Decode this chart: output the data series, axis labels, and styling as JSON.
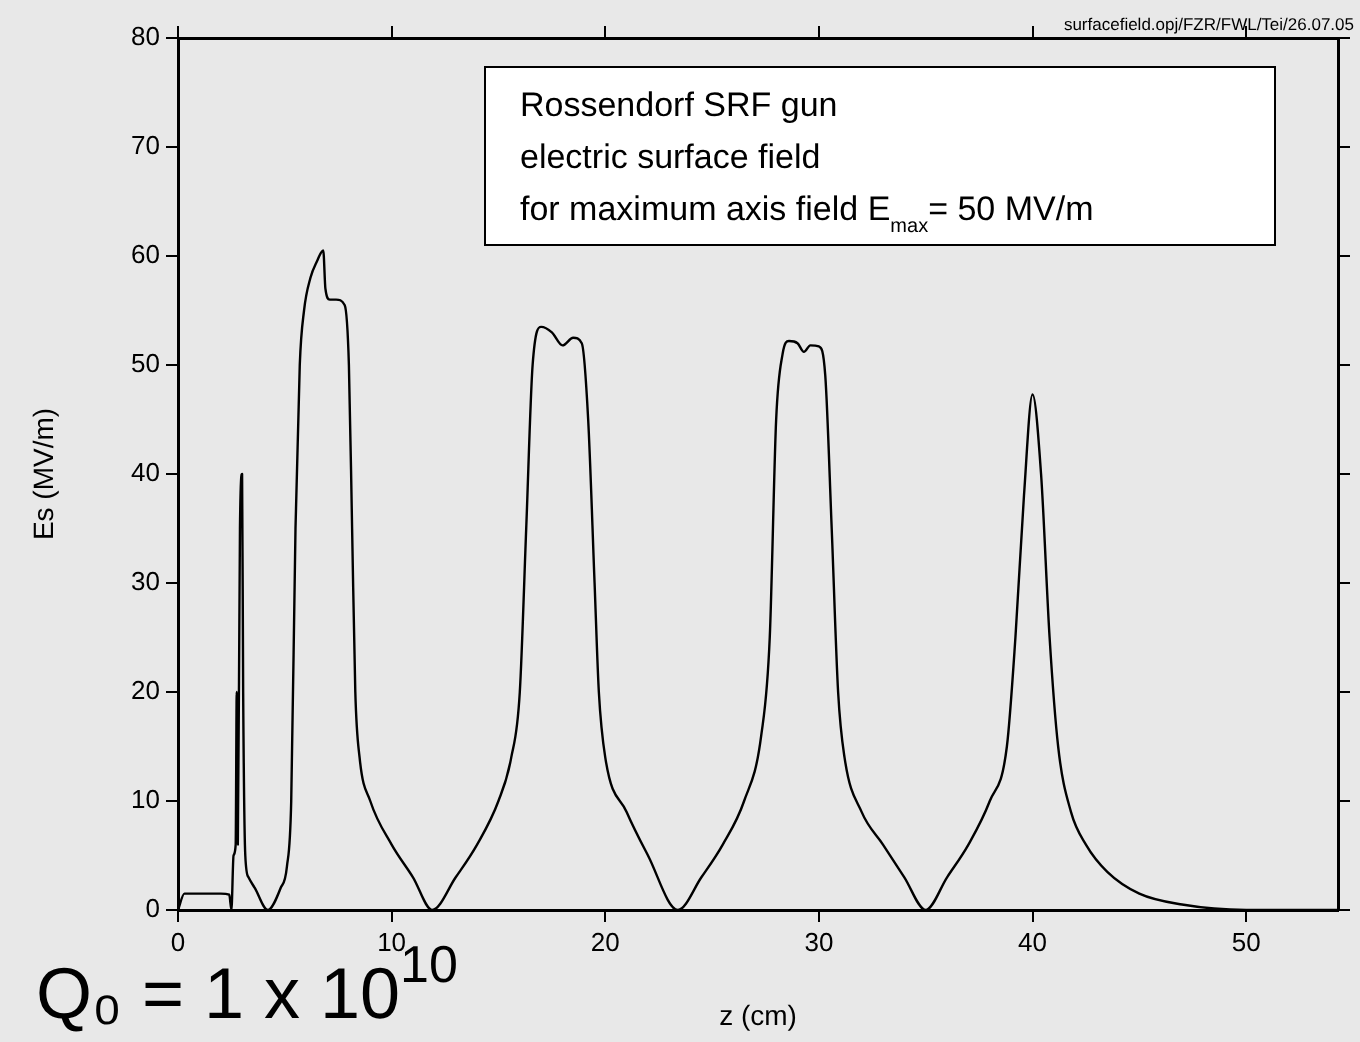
{
  "chart_data": {
    "type": "line",
    "xlabel": "z (cm)",
    "ylabel": "Es (MV/m)",
    "annotations": [
      "Rossendorf SRF gun",
      "electric surface field",
      "for maximum axis field E$_{max}$= 50 MV/m",
      "surfacefield.opj/FZR/FWL/Tei/26.07.05",
      "Q₀ = 1 x 10$^{10}$"
    ],
    "xlim": [
      0,
      54.3
    ],
    "xticks": [
      0,
      10,
      20,
      30,
      40,
      50
    ],
    "ylim": [
      0,
      80
    ],
    "yticks": [
      0,
      10,
      20,
      30,
      40,
      50,
      60,
      70,
      80
    ],
    "grid": false,
    "legend": false,
    "marker": "none",
    "line_style": "solid",
    "series": [
      {
        "color": "#000000",
        "x": [
          0,
          0.3,
          1.0,
          2.0,
          2.4,
          2.5,
          2.6,
          2.7,
          2.75,
          2.8,
          2.9,
          3.0,
          3.05,
          3.15,
          3.3,
          3.6,
          4.2,
          4.8,
          5.1,
          5.3,
          5.5,
          5.7,
          5.9,
          6.2,
          6.5,
          6.8,
          6.9,
          7.1,
          7.4,
          7.8,
          8.0,
          8.15,
          8.3,
          8.5,
          9.0,
          10.0,
          11.0,
          11.9,
          13.0,
          14.0,
          15.0,
          15.6,
          16.0,
          16.3,
          16.6,
          17.0,
          17.5,
          18.0,
          18.5,
          18.9,
          19.2,
          19.5,
          19.7,
          20.0,
          21.0,
          22.0,
          23.4,
          24.5,
          25.5,
          26.5,
          27.3,
          27.7,
          28.0,
          28.3,
          28.6,
          29.0,
          29.3,
          29.6,
          30.0,
          30.3,
          30.6,
          30.9,
          31.2,
          32.0,
          33.0,
          34.0,
          35.0,
          36.0,
          37.0,
          38.0,
          38.8,
          39.2,
          39.6,
          40.0,
          40.4,
          40.8,
          41.2,
          41.8,
          42.5,
          43.5,
          45.0,
          47.0,
          50.0,
          54.3
        ],
        "values": [
          0,
          1.5,
          1.5,
          1.5,
          1.4,
          0,
          5,
          6,
          20,
          6,
          35,
          40,
          20,
          5,
          3,
          2,
          0,
          2,
          4,
          10,
          35,
          50,
          55,
          58,
          59.5,
          60.5,
          57,
          56,
          56,
          55.5,
          50,
          35,
          20,
          14,
          10,
          6,
          3,
          0,
          3,
          6,
          10,
          14,
          20,
          35,
          50,
          53.5,
          53,
          51.8,
          52.5,
          52,
          45,
          30,
          20,
          14,
          9,
          5,
          0,
          3,
          6,
          10,
          16,
          25,
          45,
          51,
          52.2,
          52,
          51.2,
          51.8,
          51.7,
          49,
          35,
          20,
          14,
          9,
          6,
          3,
          0,
          3,
          6,
          10,
          15,
          25,
          38,
          47.3,
          40,
          25,
          15,
          9,
          6,
          3.5,
          1.5,
          0.5,
          0,
          0
        ]
      }
    ]
  }
}
